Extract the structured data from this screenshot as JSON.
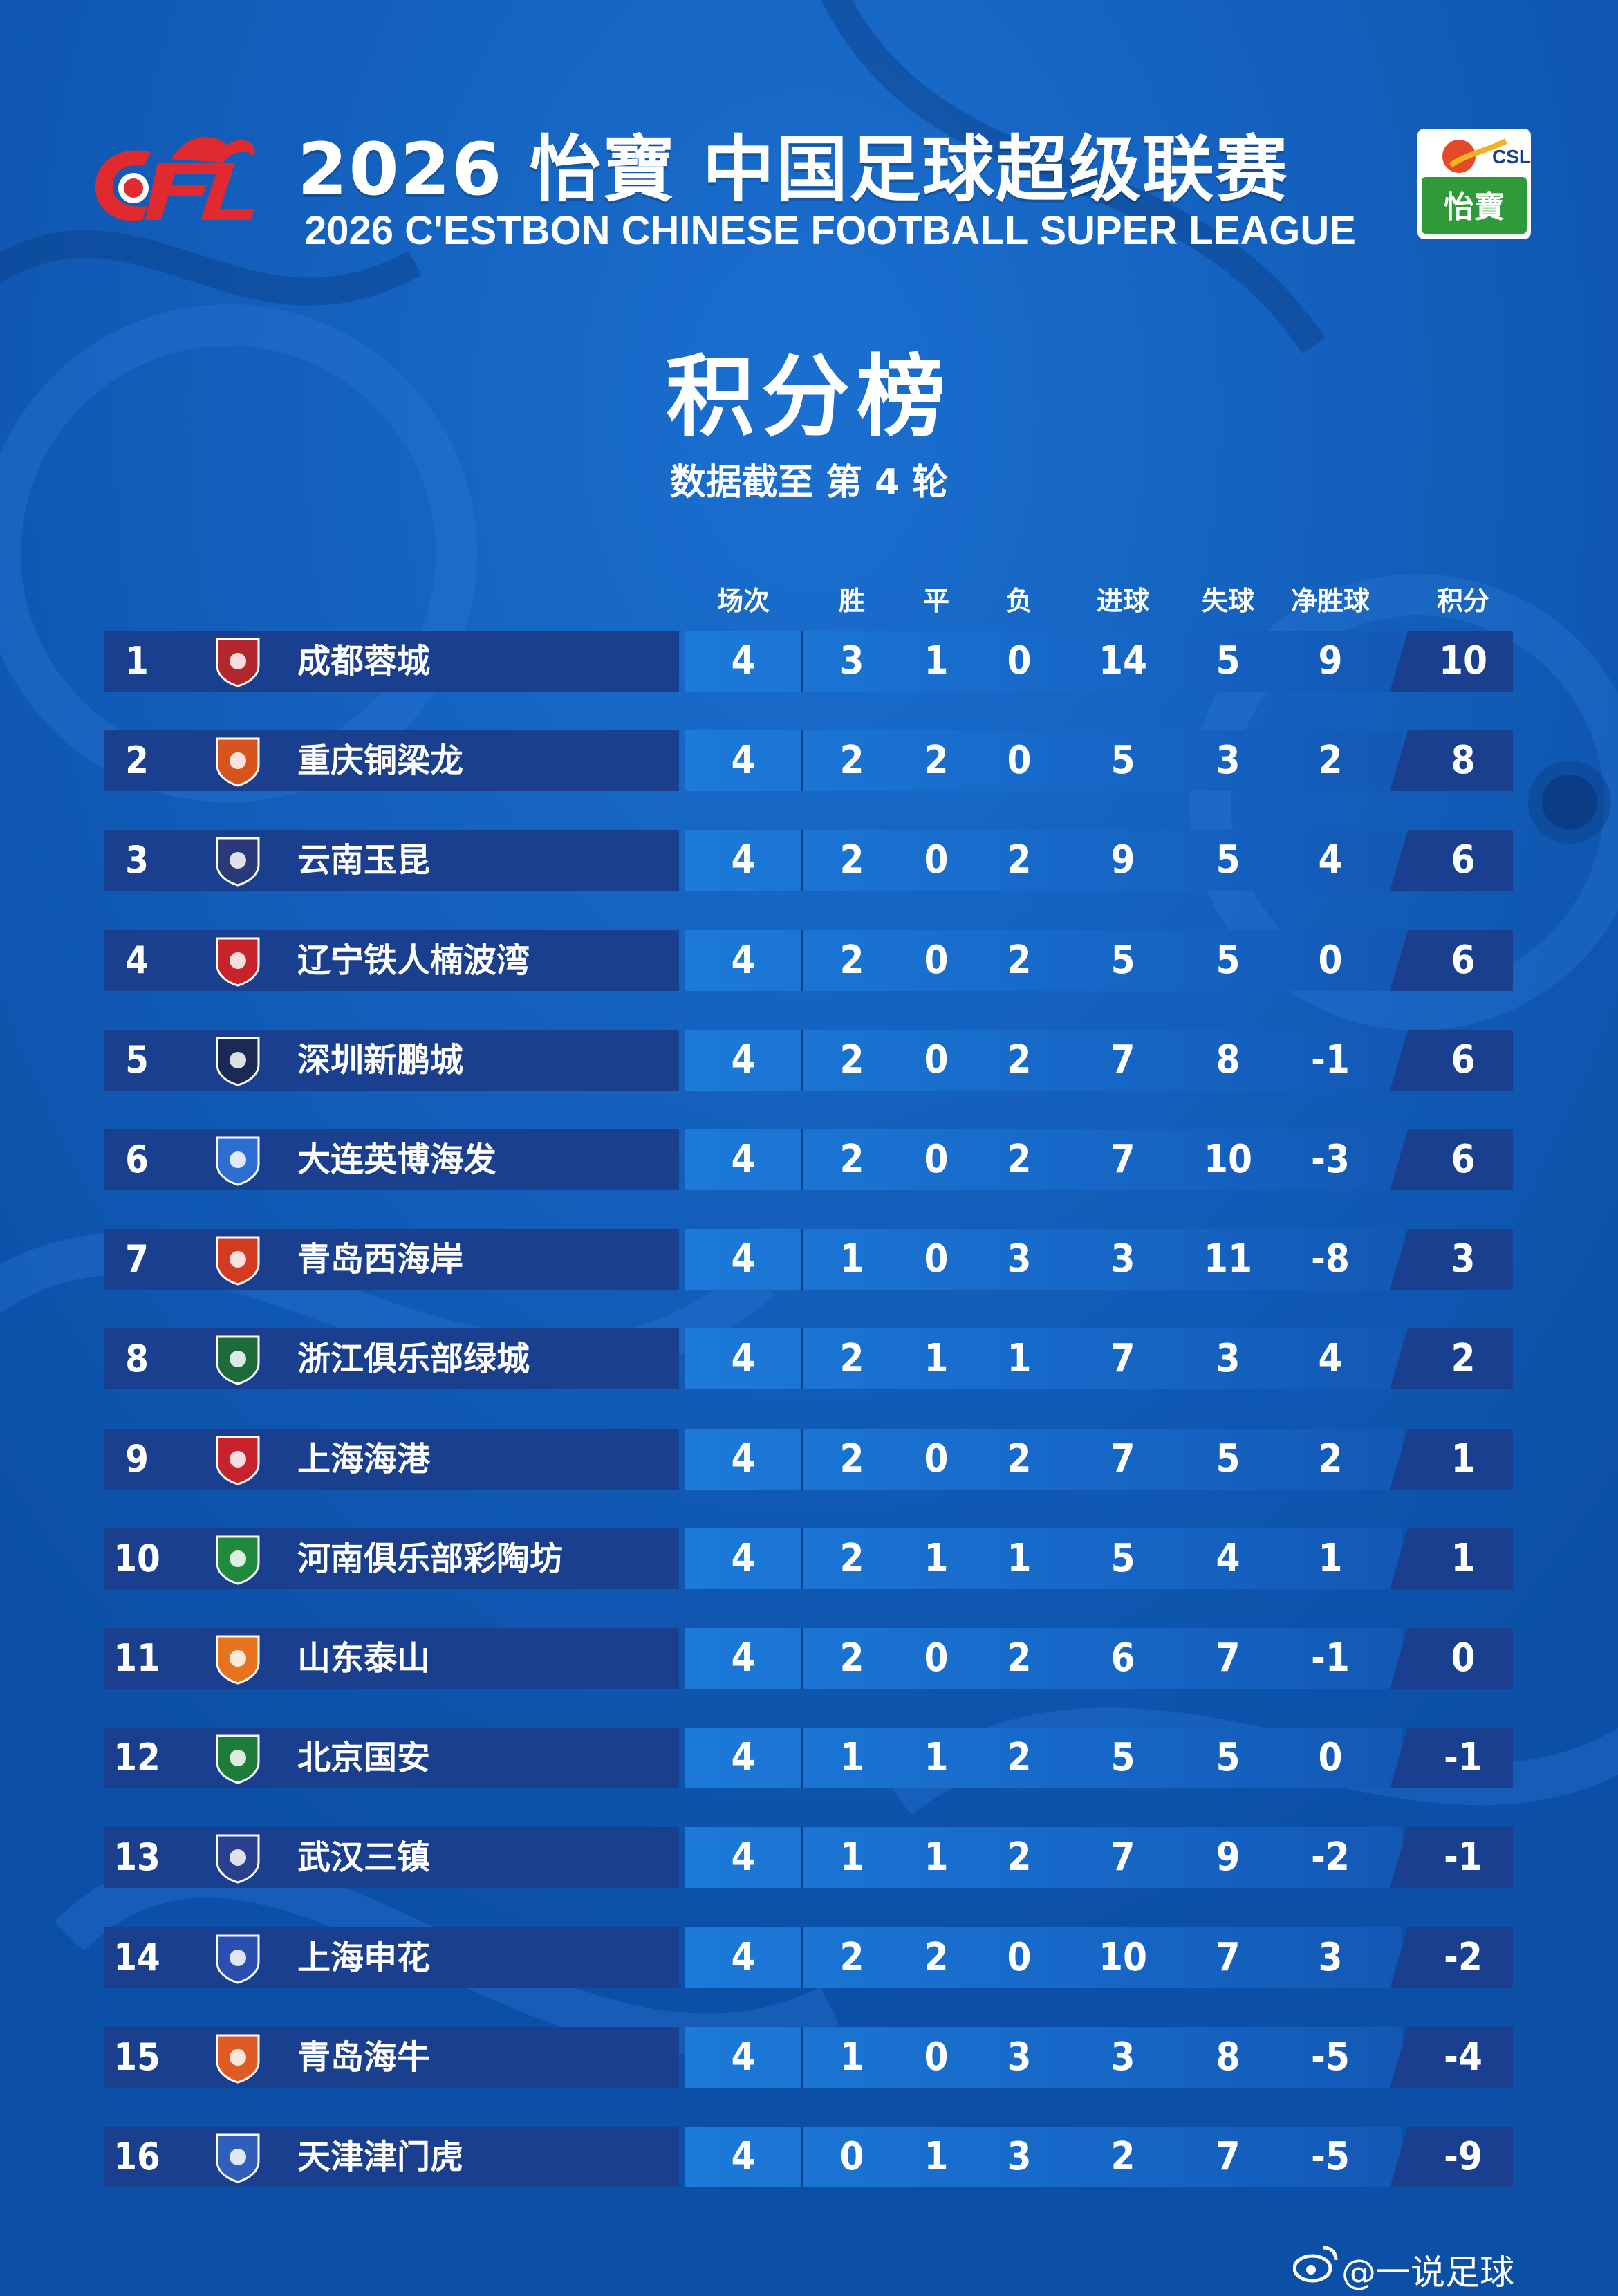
{
  "header": {
    "title_cn": "2026 怡寶 中国足球超级联赛",
    "title_en": "2026 C'ESTBON CHINESE FOOTBALL SUPER LEAGUE",
    "left_logo_text": "CFL",
    "right_logo_text": "CSL",
    "right_logo_sub": "怡寶"
  },
  "page_title": "积分榜",
  "subtitle": "数据截至 第 4 轮",
  "columns": [
    "场次",
    "胜",
    "平",
    "负",
    "进球",
    "失球",
    "净胜球",
    "积分"
  ],
  "rows": [
    {
      "rank": "1",
      "team": "成都蓉城",
      "cells": [
        "4",
        "3",
        "1",
        "0",
        "14",
        "5",
        "9",
        "10"
      ],
      "badge_color": "#b3262b"
    },
    {
      "rank": "2",
      "team": "重庆铜梁龙",
      "cells": [
        "4",
        "2",
        "2",
        "0",
        "5",
        "3",
        "2",
        "8"
      ],
      "badge_color": "#d8541e"
    },
    {
      "rank": "3",
      "team": "云南玉昆",
      "cells": [
        "4",
        "2",
        "0",
        "2",
        "9",
        "5",
        "4",
        "6"
      ],
      "badge_color": "#2a3a78"
    },
    {
      "rank": "4",
      "team": "辽宁铁人楠波湾",
      "cells": [
        "4",
        "2",
        "0",
        "2",
        "5",
        "5",
        "0",
        "6"
      ],
      "badge_color": "#c7232a"
    },
    {
      "rank": "5",
      "team": "深圳新鹏城",
      "cells": [
        "4",
        "2",
        "0",
        "2",
        "7",
        "8",
        "-1",
        "6"
      ],
      "badge_color": "#1b2a55"
    },
    {
      "rank": "6",
      "team": "大连英博海发",
      "cells": [
        "4",
        "2",
        "0",
        "2",
        "7",
        "10",
        "-3",
        "6"
      ],
      "badge_color": "#2c6fd0"
    },
    {
      "rank": "7",
      "team": "青岛西海岸",
      "cells": [
        "4",
        "1",
        "0",
        "3",
        "3",
        "11",
        "-8",
        "3"
      ],
      "badge_color": "#d23a22"
    },
    {
      "rank": "8",
      "team": "浙江俱乐部绿城",
      "cells": [
        "4",
        "2",
        "1",
        "1",
        "7",
        "3",
        "4",
        "2"
      ],
      "badge_color": "#1d6b3a"
    },
    {
      "rank": "9",
      "team": "上海海港",
      "cells": [
        "4",
        "2",
        "0",
        "2",
        "7",
        "5",
        "2",
        "1"
      ],
      "badge_color": "#c8232c"
    },
    {
      "rank": "10",
      "team": "河南俱乐部彩陶坊",
      "cells": [
        "4",
        "2",
        "1",
        "1",
        "5",
        "4",
        "1",
        "1"
      ],
      "badge_color": "#1f8a3c"
    },
    {
      "rank": "11",
      "team": "山东泰山",
      "cells": [
        "4",
        "2",
        "0",
        "2",
        "6",
        "7",
        "-1",
        "0"
      ],
      "badge_color": "#e6731e"
    },
    {
      "rank": "12",
      "team": "北京国安",
      "cells": [
        "4",
        "1",
        "1",
        "2",
        "5",
        "5",
        "0",
        "-1"
      ],
      "badge_color": "#1e7c3a"
    },
    {
      "rank": "13",
      "team": "武汉三镇",
      "cells": [
        "4",
        "1",
        "1",
        "2",
        "7",
        "9",
        "-2",
        "-1"
      ],
      "badge_color": "#2b3f8f"
    },
    {
      "rank": "14",
      "team": "上海申花",
      "cells": [
        "4",
        "2",
        "2",
        "0",
        "10",
        "7",
        "3",
        "-2"
      ],
      "badge_color": "#2a4fb0"
    },
    {
      "rank": "15",
      "team": "青岛海牛",
      "cells": [
        "4",
        "1",
        "0",
        "3",
        "3",
        "8",
        "-5",
        "-4"
      ],
      "badge_color": "#e05a24"
    },
    {
      "rank": "16",
      "team": "天津津门虎",
      "cells": [
        "4",
        "0",
        "1",
        "3",
        "2",
        "7",
        "-5",
        "-9"
      ],
      "badge_color": "#2f5fb8"
    }
  ],
  "watermark": "@一说足球",
  "colors": {
    "background": "#0d57b5",
    "row_dark": "#1a3f8e",
    "row_mid": "#1d7ad8"
  }
}
